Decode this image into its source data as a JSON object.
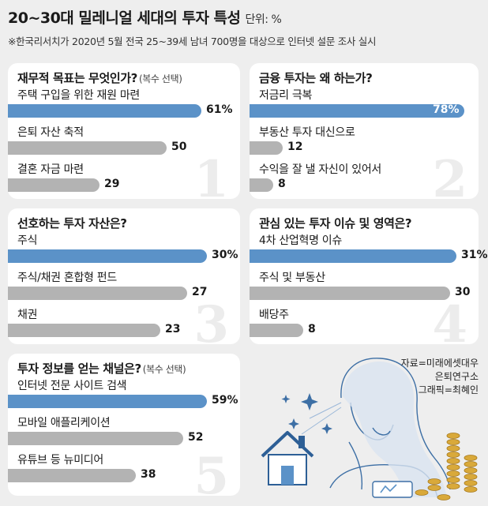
{
  "header": {
    "title": "20~30대 밀레니얼 세대의 투자 특성",
    "unit": "단위: %",
    "subtitle": "※한국리서치가 2020년 5월 전국 25~39세 남녀 700명을 대상으로 인터넷 설문 조사 실시"
  },
  "colors": {
    "primary_bar": "#5b92c8",
    "secondary_bar": "#b3b3b3",
    "background": "#eeeeee",
    "panel": "#ffffff"
  },
  "chart_data": [
    {
      "type": "bar",
      "orientation": "horizontal",
      "number": "1",
      "title": "재무적 목표는 무엇인가?",
      "note": "(복수 선택)",
      "categories": [
        "주택 구입을 위한 재원 마련",
        "은퇴 자산 축적",
        "결혼 자금 마련"
      ],
      "values": [
        61,
        50,
        29
      ],
      "labels": [
        "61%",
        "50",
        "29"
      ]
    },
    {
      "type": "bar",
      "orientation": "horizontal",
      "number": "2",
      "title": "금융 투자는 왜 하는가?",
      "note": "",
      "categories": [
        "저금리 극복",
        "부동산 투자 대신으로",
        "수익을 잘 낼 자신이 있어서"
      ],
      "values": [
        78,
        12,
        8
      ],
      "labels": [
        "78%",
        "12",
        "8"
      ]
    },
    {
      "type": "bar",
      "orientation": "horizontal",
      "number": "3",
      "title": "선호하는 투자 자산은?",
      "note": "",
      "categories": [
        "주식",
        "주식/채권 혼합형 펀드",
        "채권"
      ],
      "values": [
        30,
        27,
        23
      ],
      "labels": [
        "30%",
        "27",
        "23"
      ]
    },
    {
      "type": "bar",
      "orientation": "horizontal",
      "number": "4",
      "title": "관심 있는 투자 이슈 및 영역은?",
      "note": "",
      "categories": [
        "4차 산업혁명 이슈",
        "주식 및 부동산",
        "배당주"
      ],
      "values": [
        31,
        30,
        8
      ],
      "labels": [
        "31%",
        "30",
        "8"
      ]
    },
    {
      "type": "bar",
      "orientation": "horizontal",
      "number": "5",
      "title": "투자 정보를 얻는 채널은?",
      "note": "(복수 선택)",
      "categories": [
        "인터넷 전문 사이트 검색",
        "모바일 애플리케이션",
        "유튜브 등 뉴미디어"
      ],
      "values": [
        59,
        52,
        38
      ],
      "labels": [
        "59%",
        "52",
        "38"
      ]
    }
  ],
  "credits": [
    "자료=미래에셋대우",
    "은퇴연구소",
    "그래픽=최혜인"
  ]
}
